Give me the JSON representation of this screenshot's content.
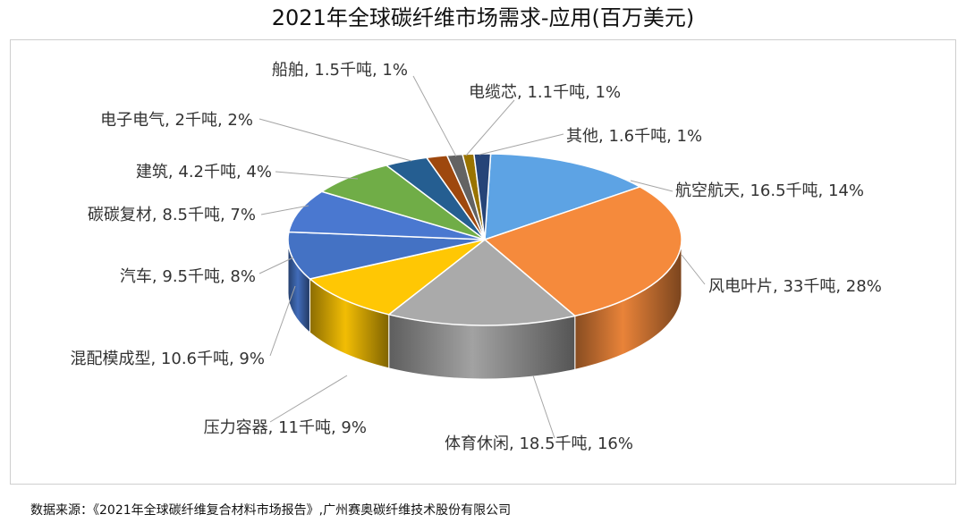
{
  "title": "2021年全球碳纤维市场需求-应用(百万美元)",
  "source": "数据来源：《2021年全球碳纤维复合材料市场报告》,广州赛奥碳纤维技术股份有限公司",
  "chart_data": {
    "type": "pie",
    "title": "2021年全球碳纤维市场需求-应用(百万美元)",
    "style": "3d",
    "series": [
      {
        "key": "aerospace",
        "label": "航空航天, 16.5千吨, 14%",
        "value": 16.5,
        "percent": 14,
        "color": "#5DA3E4"
      },
      {
        "key": "wind",
        "label": "风电叶片, 33千吨, 28%",
        "value": 33,
        "percent": 28,
        "color": "#F58A3C"
      },
      {
        "key": "sports",
        "label": "体育休闲, 18.5千吨, 16%",
        "value": 18.5,
        "percent": 16,
        "color": "#AAAAAA"
      },
      {
        "key": "pressure",
        "label": "压力容器, 11千吨, 9%",
        "value": 11,
        "percent": 9,
        "color": "#FFC704"
      },
      {
        "key": "molding",
        "label": "混配模成型, 10.6千吨, 9%",
        "value": 10.6,
        "percent": 9,
        "color": "#4472C4"
      },
      {
        "key": "auto",
        "label": "汽车, 9.5千吨, 8%",
        "value": 9.5,
        "percent": 8,
        "color": "#4A78D0"
      },
      {
        "key": "cc",
        "label": "碳碳复材, 8.5千吨, 7%",
        "value": 8.5,
        "percent": 7,
        "color": "#70AD47"
      },
      {
        "key": "construction",
        "label": "建筑, 4.2千吨, 4%",
        "value": 4.2,
        "percent": 4,
        "color": "#255E91"
      },
      {
        "key": "electronics",
        "label": "电子电气, 2千吨, 2%",
        "value": 2,
        "percent": 2,
        "color": "#9E480E"
      },
      {
        "key": "marine",
        "label": "船舶, 1.5千吨, 1%",
        "value": 1.5,
        "percent": 1,
        "color": "#636363"
      },
      {
        "key": "cable",
        "label": "电缆芯, 1.1千吨, 1%",
        "value": 1.1,
        "percent": 1,
        "color": "#997300"
      },
      {
        "key": "other",
        "label": "其他, 1.6千吨, 1%",
        "value": 1.6,
        "percent": 1,
        "color": "#264478"
      }
    ]
  }
}
